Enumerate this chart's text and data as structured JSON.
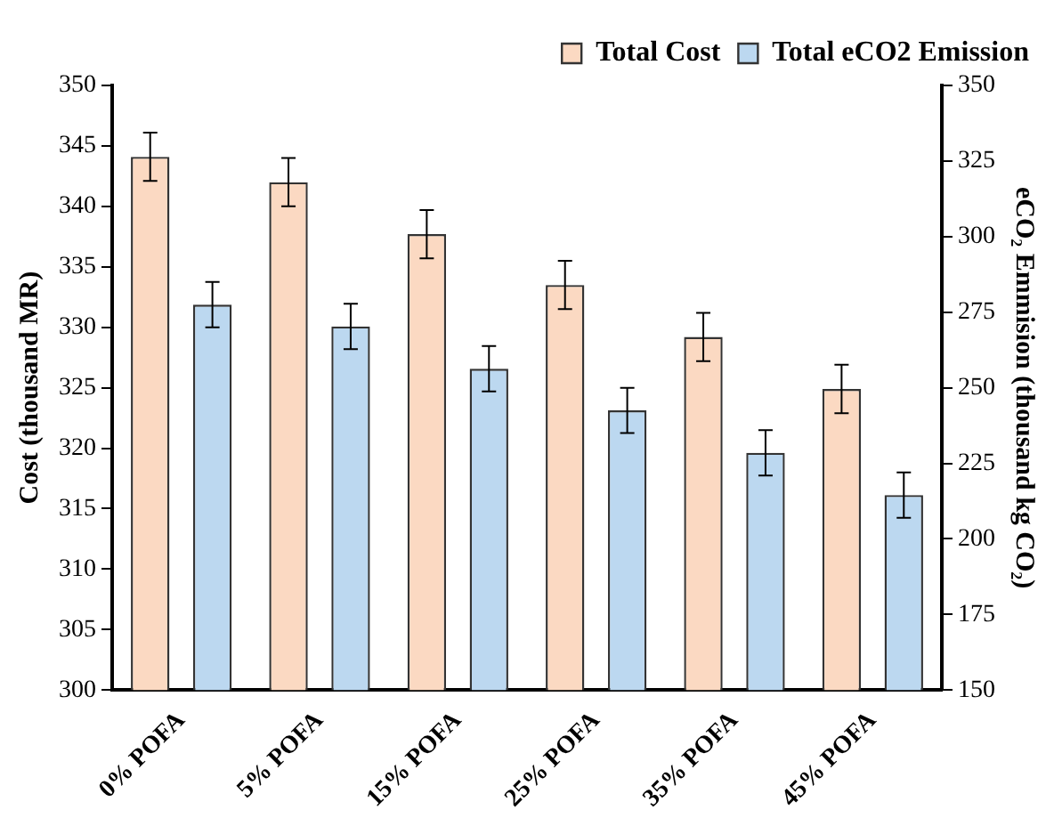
{
  "chart_data": {
    "type": "bar",
    "categories": [
      "0% POFA",
      "5% POFA",
      "15% POFA",
      "25% POFA",
      "35% POFA",
      "45% POFA"
    ],
    "series": [
      {
        "name": "Total Cost",
        "color": "#fbd9c2",
        "values": [
          344.1,
          342.0,
          337.7,
          333.5,
          329.2,
          324.9
        ],
        "errors": [
          2,
          2,
          2,
          2,
          2,
          2
        ]
      },
      {
        "name": "Total eCO2 Emission",
        "color": "#bcd8f0",
        "axis": "y2",
        "values": [
          277.5,
          270.3,
          256.3,
          242.5,
          228.5,
          214.5
        ],
        "errors": [
          7.5,
          7.5,
          7.5,
          7.5,
          7.5,
          7.5
        ]
      }
    ],
    "ylabel": "Cost (thousand MR)",
    "y2label": "eCO₂ Emmision (thousand kg CO₂)",
    "ylim": [
      300,
      350
    ],
    "yticks": [
      300,
      305,
      310,
      315,
      320,
      325,
      330,
      335,
      340,
      345,
      350
    ],
    "y2lim": [
      150,
      350
    ],
    "y2ticks": [
      150,
      175,
      200,
      225,
      250,
      275,
      300,
      325,
      350
    ],
    "grid": false,
    "legend": "top right"
  }
}
